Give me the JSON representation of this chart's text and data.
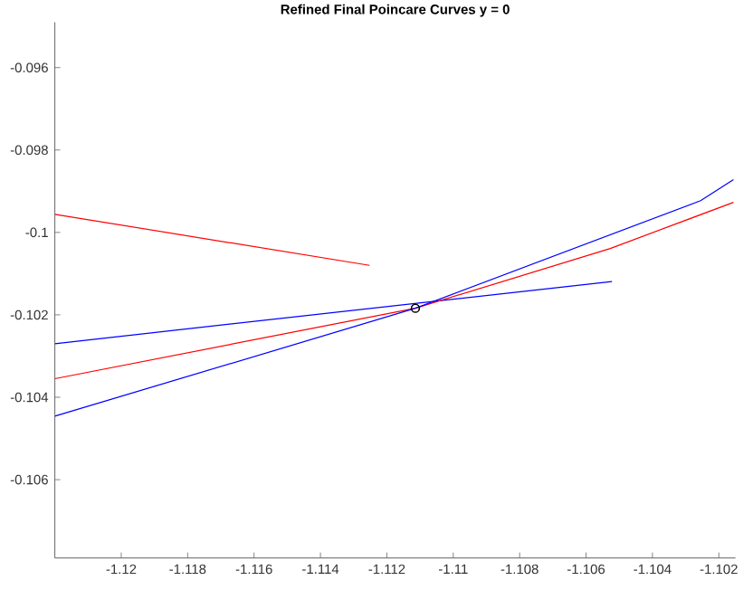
{
  "chart_data": {
    "type": "line",
    "title": "Refined Final Poincare Curves y = 0",
    "xlim": [
      -1.122,
      -1.1015
    ],
    "ylim": [
      -0.1079,
      -0.0949
    ],
    "xticks": [
      -1.12,
      -1.118,
      -1.116,
      -1.114,
      -1.112,
      -1.11,
      -1.108,
      -1.106,
      -1.104,
      -1.102
    ],
    "yticks": [
      -0.106,
      -0.104,
      -0.102,
      -0.1,
      -0.098,
      -0.096
    ],
    "grid": false,
    "series": [
      {
        "color": "#ff0000",
        "x": [
          -1.122,
          -1.11252
        ],
        "values": [
          -0.09956,
          -0.1008
        ]
      },
      {
        "color": "#0000ff",
        "x": [
          -1.122,
          -1.10522
        ],
        "values": [
          -0.1027,
          -0.10119
        ]
      },
      {
        "color": "#ff0000",
        "x": [
          -1.122,
          -1.11114,
          -1.10527,
          -1.10156
        ],
        "values": [
          -0.10355,
          -0.10184,
          -0.10039,
          -0.09927
        ]
      },
      {
        "color": "#0000ff",
        "x": [
          -1.122,
          -1.11114,
          -1.10255,
          -1.10156
        ],
        "values": [
          -0.10446,
          -0.10184,
          -0.09923,
          -0.09872
        ]
      },
      {
        "type": "scatter",
        "color": "#000000",
        "marker": "circle",
        "x": [
          -1.11114
        ],
        "values": [
          -0.10184
        ]
      }
    ]
  }
}
